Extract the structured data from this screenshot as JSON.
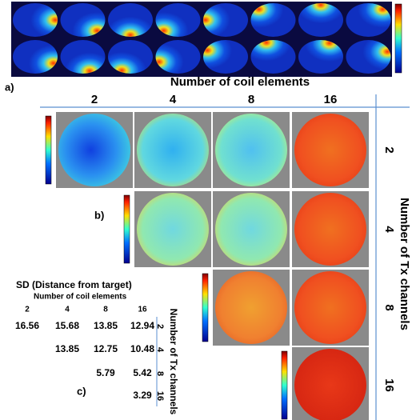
{
  "panel_a": {
    "label": "a)"
  },
  "panel_b": {
    "label": "b)",
    "x_title": "Number of coil elements",
    "columns": [
      "2",
      "4",
      "8",
      "16"
    ],
    "y_title": "Number of Tx channels",
    "rows": [
      "2",
      "4",
      "8",
      "16"
    ]
  },
  "panel_c": {
    "label": "c)",
    "title": "SD (Distance from target)",
    "x_title": "Number of coil elements",
    "columns": [
      "2",
      "4",
      "8",
      "16"
    ],
    "y_title": "Number of Tx channels",
    "rows": [
      {
        "label": "2",
        "cells": [
          "16.56",
          "15.68",
          "13.85",
          "12.94"
        ]
      },
      {
        "label": "4",
        "cells": [
          "13.85",
          "12.75",
          "10.48"
        ]
      },
      {
        "label": "8",
        "cells": [
          "5.79",
          "5.42"
        ]
      },
      {
        "label": "16",
        "cells": [
          "3.29"
        ]
      }
    ]
  }
}
